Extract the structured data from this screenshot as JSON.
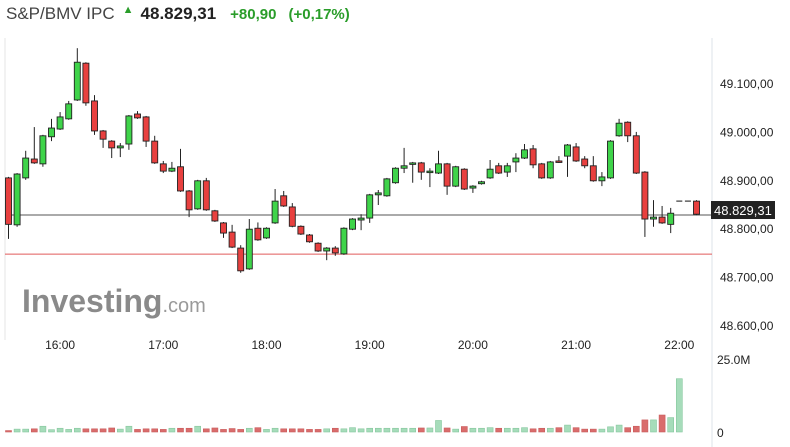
{
  "header": {
    "title": "S&P/BMV IPC",
    "direction_icon": "up-arrow-icon",
    "last_price": "48.829,31",
    "change": "+80,90",
    "change_pct": "(+0,17%)"
  },
  "watermark": {
    "brand": "Investing",
    "suffix": ".com"
  },
  "colors": {
    "up": "#3fd44a",
    "down": "#e8403f",
    "volume_up": "#a6dcba",
    "volume_down": "#d96c6c",
    "price_line": "#555555",
    "prev_close_line": "#e05a5a",
    "change_positive": "#2a9d2a"
  },
  "chart_data": {
    "type": "candlestick",
    "interval": "5 minutes",
    "ylim": [
      48560,
      49190
    ],
    "y_ticks": [
      49100,
      49000,
      48900,
      48800,
      48700,
      48600
    ],
    "y_tick_labels": [
      "49.100,00",
      "49.000,00",
      "48.900,00",
      "48.800,00",
      "48.700,00",
      "48.600,00"
    ],
    "x_ticks": [
      "16:00",
      "17:00",
      "18:00",
      "19:00",
      "20:00",
      "21:00",
      "22:00"
    ],
    "first_candle_time": "15:30",
    "last_price": 48829.31,
    "last_price_label": "48.829,31",
    "prev_close_line": 48748.41,
    "ohlc": [
      [
        48906,
        48908,
        48780,
        48810
      ],
      [
        48809,
        48916,
        48805,
        48914
      ],
      [
        48906,
        48962,
        48902,
        48947
      ],
      [
        48945,
        49011,
        48935,
        48937
      ],
      [
        48935,
        48995,
        48929,
        48993
      ],
      [
        48991,
        49028,
        48982,
        49009
      ],
      [
        49007,
        49042,
        49005,
        49032
      ],
      [
        49028,
        49065,
        49026,
        49059
      ],
      [
        49067,
        49174,
        49065,
        49145
      ],
      [
        49143,
        49145,
        49055,
        49061
      ],
      [
        49065,
        49077,
        48995,
        49003
      ],
      [
        49003,
        49005,
        48968,
        48986
      ],
      [
        48982,
        48984,
        48947,
        48968
      ],
      [
        48968,
        48978,
        48949,
        48972
      ],
      [
        48976,
        49036,
        48964,
        49034
      ],
      [
        49038,
        49044,
        49028,
        49030
      ],
      [
        49032,
        49034,
        48970,
        48982
      ],
      [
        48982,
        48993,
        48935,
        48937
      ],
      [
        48935,
        48941,
        48916,
        48920
      ],
      [
        48920,
        48939,
        48918,
        48926
      ],
      [
        48929,
        48966,
        48877,
        48879
      ],
      [
        48879,
        48881,
        48825,
        48840
      ],
      [
        48842,
        48902,
        48840,
        48900
      ],
      [
        48900,
        48906,
        48838,
        48840
      ],
      [
        48838,
        48840,
        48815,
        48817
      ],
      [
        48813,
        48815,
        48782,
        48792
      ],
      [
        48794,
        48809,
        48761,
        48763
      ],
      [
        48761,
        48767,
        48710,
        48714
      ],
      [
        48718,
        48821,
        48716,
        48800
      ],
      [
        48802,
        48814,
        48776,
        48778
      ],
      [
        48782,
        48804,
        48780,
        48802
      ],
      [
        48813,
        48883,
        48811,
        48858
      ],
      [
        48869,
        48879,
        48846,
        48848
      ],
      [
        48846,
        48854,
        48804,
        48806
      ],
      [
        48806,
        48808,
        48788,
        48790
      ],
      [
        48788,
        48790,
        48772,
        48774
      ],
      [
        48771,
        48773,
        48753,
        48755
      ],
      [
        48755,
        48763,
        48736,
        48761
      ],
      [
        48761,
        48765,
        48745,
        48751
      ],
      [
        48749,
        48804,
        48747,
        48802
      ],
      [
        48800,
        48823,
        48798,
        48821
      ],
      [
        48819,
        48831,
        48798,
        48823
      ],
      [
        48823,
        48873,
        48813,
        48871
      ],
      [
        48871,
        48881,
        48850,
        48875
      ],
      [
        48869,
        48906,
        48867,
        48904
      ],
      [
        48896,
        48928,
        48894,
        48926
      ],
      [
        48926,
        48968,
        48916,
        48931
      ],
      [
        48935,
        48939,
        48896,
        48937
      ],
      [
        48937,
        48939,
        48902,
        48918
      ],
      [
        48918,
        48926,
        48887,
        48920
      ],
      [
        48916,
        48962,
        48914,
        48935
      ],
      [
        48935,
        48937,
        48871,
        48889
      ],
      [
        48889,
        48931,
        48887,
        48929
      ],
      [
        48924,
        48926,
        48881,
        48883
      ],
      [
        48885,
        48891,
        48875,
        48889
      ],
      [
        48894,
        48900,
        48892,
        48898
      ],
      [
        48906,
        48943,
        48904,
        48924
      ],
      [
        48931,
        48937,
        48914,
        48916
      ],
      [
        48918,
        48937,
        48908,
        48931
      ],
      [
        48939,
        48957,
        48918,
        48947
      ],
      [
        48947,
        48976,
        48945,
        48964
      ],
      [
        48966,
        48974,
        48926,
        48933
      ],
      [
        48935,
        48937,
        48904,
        48906
      ],
      [
        48906,
        48941,
        48904,
        48939
      ],
      [
        48941,
        48951,
        48937,
        48939
      ],
      [
        48951,
        48976,
        48908,
        48974
      ],
      [
        48970,
        48978,
        48939,
        48941
      ],
      [
        48945,
        48951,
        48926,
        48931
      ],
      [
        48931,
        48951,
        48898,
        48900
      ],
      [
        48900,
        48918,
        48889,
        48908
      ],
      [
        48906,
        48984,
        48904,
        48982
      ],
      [
        48993,
        49028,
        48991,
        49019
      ],
      [
        49021,
        49023,
        48980,
        48993
      ],
      [
        48993,
        49001,
        48914,
        48916
      ],
      [
        48918,
        48920,
        48784,
        48821
      ],
      [
        48821,
        48860,
        48805,
        48825
      ],
      [
        48825,
        48848,
        48811,
        48813
      ],
      [
        48810,
        48844,
        48792,
        48833
      ],
      [
        48858,
        48858,
        48858,
        48858
      ],
      [
        48858,
        48858,
        48858,
        48858
      ],
      [
        48858,
        48860,
        48829,
        48831
      ]
    ],
    "volume_unit": "M",
    "volume_ylim": [
      0,
      25
    ],
    "volume_tick_labels": [
      "25.0M",
      "0"
    ],
    "volume": [
      0.5,
      1.0,
      1.0,
      1.1,
      2.0,
      0.8,
      1.3,
      0.9,
      1.3,
      1.1,
      1.1,
      1.1,
      1.4,
      1.0,
      2.0,
      0.9,
      1.1,
      1.1,
      0.9,
      1.3,
      1.3,
      1.3,
      2.0,
      1.1,
      1.4,
      0.9,
      1.2,
      0.9,
      1.3,
      1.5,
      0.9,
      1.3,
      1.1,
      1.1,
      1.1,
      0.9,
      0.9,
      1.1,
      1.3,
      1.1,
      1.5,
      1.1,
      1.3,
      1.3,
      1.3,
      1.3,
      1.3,
      1.3,
      1.4,
      1.4,
      4.0,
      1.4,
      1.0,
      1.9,
      1.3,
      1.3,
      1.5,
      1.3,
      1.3,
      1.3,
      1.5,
      1.1,
      1.3,
      1.3,
      1.5,
      2.4,
      1.5,
      1.0,
      1.0,
      1.0,
      1.8,
      2.4,
      1.5,
      2.0,
      4.2,
      4.2,
      5.9,
      5.0,
      18.5,
      0,
      0
    ]
  }
}
